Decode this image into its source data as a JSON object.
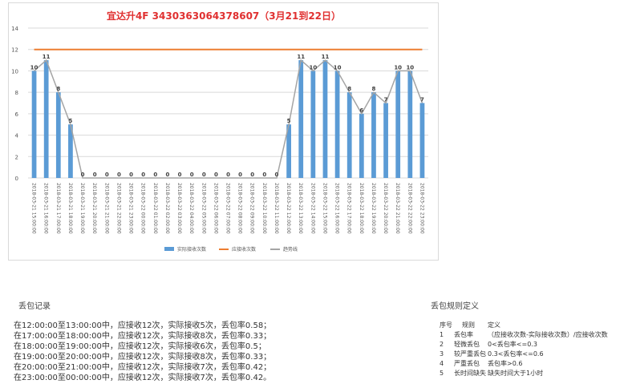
{
  "chart_data": {
    "type": "bar+line",
    "title": "宜达升4F  3430363064378607（3月21到22日）",
    "ylim": [
      0,
      14
    ],
    "yticks": [
      0,
      2,
      4,
      6,
      8,
      10,
      12,
      14
    ],
    "grid": true,
    "legend_position": "bottom",
    "categories": [
      "2018-03-21 15:00:00",
      "2018-03-21 16:00:00",
      "2018-03-21 17:00:00",
      "2018-03-21 18:00:00",
      "2018-03-21 19:00:00",
      "2018-03-21 20:00:00",
      "2018-03-21 21:00:00",
      "2018-03-21 22:00:00",
      "2018-03-21 23:00:00",
      "2018-03-22 00:00:00",
      "2018-03-22 01:00:00",
      "2018-03-22 02:00:00",
      "2018-03-22 03:00:00",
      "2018-03-22 04:00:00",
      "2018-03-22 05:00:00",
      "2018-03-22 06:00:00",
      "2018-03-22 07:00:00",
      "2018-03-22 08:00:00",
      "2018-03-22 09:00:00",
      "2018-03-22 10:00:00",
      "2018-03-22 11:00:00",
      "2018-03-22 12:00:00",
      "2018-03-22 13:00:00",
      "2018-03-22 14:00:00",
      "2018-03-22 15:00:00",
      "2018-03-22 16:00:00",
      "2018-03-22 17:00:00",
      "2018-03-22 18:00:00",
      "2018-03-22 19:00:00",
      "2018-03-22 20:00:00",
      "2018-03-22 21:00:00",
      "2018-03-22 22:00:00",
      "2018-03-22 23:00:00"
    ],
    "series": [
      {
        "name": "实际接收次数",
        "kind": "bar",
        "color": "#5b9bd5",
        "values": [
          10,
          11,
          8,
          5,
          0,
          0,
          0,
          0,
          0,
          0,
          0,
          0,
          0,
          0,
          0,
          0,
          0,
          0,
          0,
          0,
          0,
          5,
          11,
          10,
          11,
          10,
          8,
          6,
          8,
          7,
          10,
          10,
          7
        ]
      },
      {
        "name": "应接收次数",
        "kind": "line",
        "color": "#ed7d31",
        "values": [
          12,
          12,
          12,
          12,
          12,
          12,
          12,
          12,
          12,
          12,
          12,
          12,
          12,
          12,
          12,
          12,
          12,
          12,
          12,
          12,
          12,
          12,
          12,
          12,
          12,
          12,
          12,
          12,
          12,
          12,
          12,
          12,
          12
        ]
      },
      {
        "name": "趋势线",
        "kind": "line",
        "color": "#a5a5a5",
        "values": [
          10,
          11,
          8,
          5,
          0,
          0,
          0,
          0,
          0,
          0,
          0,
          0,
          0,
          0,
          0,
          0,
          0,
          0,
          0,
          0,
          0,
          5,
          11,
          10,
          11,
          10,
          8,
          6,
          8,
          7,
          10,
          10,
          7
        ]
      }
    ]
  },
  "colors": {
    "title": "#e03030",
    "grid": "#d9d9d9",
    "axis_text": "#595959"
  },
  "records_section": {
    "title": "丢包记录",
    "lines": [
      "在12:00:00至13:00:00中，应接收12次，实际接收5次，丢包率0.58；",
      "在17:00:00至18:00:00中，应接收12次，实际接收8次，丢包率0.33；",
      "在18:00:00至19:00:00中，应接收12次，实际接收6次，丢包率0.5；",
      "在19:00:00至20:00:00中，应接收12次，实际接收8次，丢包率0.33；",
      "在20:00:00至21:00:00中，应接收12次，实际接收7次，丢包率0.42；",
      "在23:00:00至00:00:00中，应接收12次，实际接收7次，丢包率0.42。"
    ]
  },
  "rules_section": {
    "title": "丢包规则定义",
    "header": [
      "序号",
      "规则",
      "定义"
    ],
    "rows": [
      [
        "1",
        "丢包率",
        "（应接收次数-实际接收次数）/应接收次数"
      ],
      [
        "2",
        "轻微丢包",
        "0<丢包率<=0.3"
      ],
      [
        "3",
        "较严重丢包",
        "0.3<丢包率<=0.6"
      ],
      [
        "4",
        "严重丢包",
        "丢包率>0.6"
      ],
      [
        "5",
        "长时间缺失",
        "缺失时间大于1小时"
      ]
    ]
  }
}
